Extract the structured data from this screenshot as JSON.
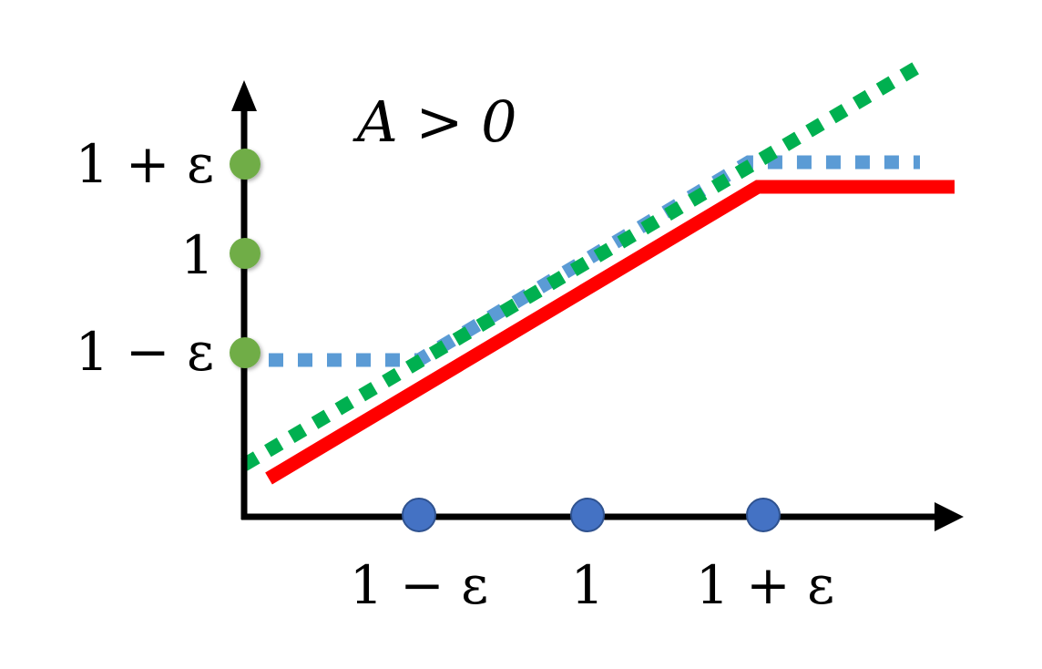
{
  "title": "A > 0",
  "y_ticks": [
    "1 + ε",
    "1",
    "1 − ε"
  ],
  "x_ticks": [
    "1 − ε",
    "1",
    "1 + ε"
  ],
  "colors": {
    "axis": "#000000",
    "y_markers": "#70ad47",
    "x_markers": "#4472c4",
    "clipped_objective": "#ff0000",
    "clipped_ratio": "#5b9bd5",
    "unclipped": "#00b050"
  },
  "lines": [
    {
      "id": "unclipped",
      "style": "dotted",
      "color": "#00b050"
    },
    {
      "id": "clipped_ratio",
      "style": "dotted",
      "color": "#5b9bd5"
    },
    {
      "id": "clipped_objective",
      "style": "solid",
      "color": "#ff0000"
    }
  ]
}
